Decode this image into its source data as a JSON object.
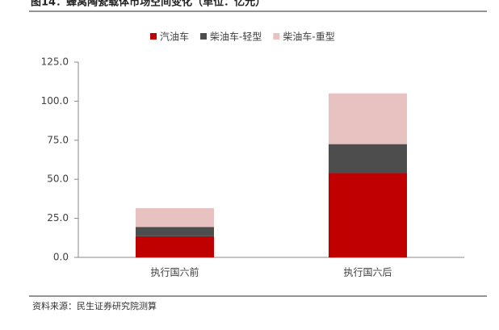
{
  "chart_data": {
    "type": "stacked-bar",
    "title": "图14：蜂窝陶瓷载体市场空间变化（单位：亿元）",
    "source": "资料来源：民生证券研究院测算",
    "categories": [
      "执行国六前",
      "执行国六后"
    ],
    "series": [
      {
        "name": "汽油车",
        "color": "#c00000",
        "values": [
          13.5,
          54
        ]
      },
      {
        "name": "柴油车-轻型",
        "color": "#4d4d4d",
        "values": [
          6,
          18.5
        ]
      },
      {
        "name": "柴油车-重型",
        "color": "#e8c1c1",
        "values": [
          12,
          32.5
        ]
      }
    ],
    "ylim": [
      0,
      125
    ],
    "yticks": [
      {
        "value": 0,
        "label": "0.0"
      },
      {
        "value": 25,
        "label": "25.0"
      },
      {
        "value": 50,
        "label": "50.0"
      },
      {
        "value": 75,
        "label": "75.0"
      },
      {
        "value": 100,
        "label": "100.0"
      },
      {
        "value": 125,
        "label": "125.0"
      }
    ],
    "legend": "top"
  }
}
